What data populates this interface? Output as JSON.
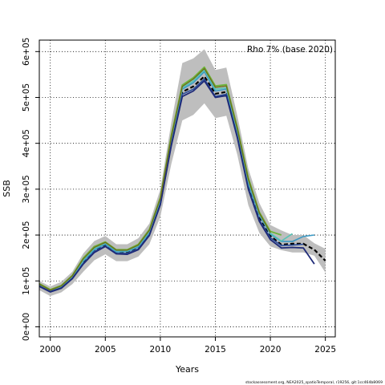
{
  "chart_data": {
    "type": "line",
    "xlabel": "Years",
    "ylabel": "SSB",
    "annotation": "Rho 7% (base 2020)",
    "footer": "stockassessment.org, NEA2025_spatioTemporal, r19256, git:1cc464b8069",
    "xlim": [
      1999,
      2025.9
    ],
    "ylim": [
      -22000,
      625000
    ],
    "x_ticks": [
      2000,
      2005,
      2010,
      2015,
      2020,
      2025
    ],
    "y_ticks": [
      0,
      100000,
      200000,
      300000,
      400000,
      500000,
      600000
    ],
    "y_tick_labels": [
      "0e+00",
      "1e+05",
      "2e+05",
      "3e+05",
      "4e+05",
      "5e+05",
      "6e+05"
    ],
    "grid": true,
    "confidence_band": {
      "color": "#bebebe",
      "x": [
        1999,
        2000,
        2001,
        2002,
        2003,
        2004,
        2005,
        2006,
        2007,
        2008,
        2009,
        2010,
        2011,
        2012,
        2013,
        2014,
        2015,
        2016,
        2017,
        2018,
        2019,
        2020,
        2021,
        2022,
        2023,
        2024,
        2025
      ],
      "lower": [
        80000,
        67000,
        75000,
        93000,
        120000,
        145000,
        158000,
        143000,
        143000,
        153000,
        180000,
        240000,
        355000,
        450000,
        462000,
        487000,
        455000,
        460000,
        375000,
        265000,
        205000,
        175000,
        167000,
        162000,
        162000,
        155000,
        118000
      ],
      "upper": [
        100000,
        88000,
        98000,
        120000,
        160000,
        187000,
        198000,
        180000,
        180000,
        193000,
        225000,
        300000,
        445000,
        575000,
        585000,
        605000,
        560000,
        565000,
        460000,
        345000,
        270000,
        222000,
        210000,
        200000,
        200000,
        182000,
        170000
      ]
    },
    "series": [
      {
        "color": "#000000",
        "dashed": true,
        "width": 2.2,
        "x": [
          1999,
          2000,
          2001,
          2002,
          2003,
          2004,
          2005,
          2006,
          2007,
          2008,
          2009,
          2010,
          2011,
          2012,
          2013,
          2014,
          2015,
          2016,
          2017,
          2018,
          2019,
          2020,
          2021,
          2022,
          2023,
          2024,
          2025
        ],
        "values": [
          90000,
          77000,
          86000,
          107000,
          140000,
          166000,
          178000,
          162000,
          162000,
          172000,
          202000,
          270000,
          400000,
          512000,
          524000,
          546000,
          508000,
          512000,
          418000,
          305000,
          238000,
          198000,
          179000,
          181000,
          181000,
          168000,
          144000
        ]
      },
      {
        "color": "#3b9ac5",
        "width": 1.6,
        "x": [
          1999,
          2000,
          2001,
          2002,
          2003,
          2004,
          2005,
          2006,
          2007,
          2008,
          2009,
          2010,
          2011,
          2012,
          2013,
          2014,
          2015,
          2016,
          2017,
          2018,
          2019,
          2020,
          2021,
          2022,
          2023,
          2024
        ],
        "values": [
          90000,
          78000,
          87000,
          108000,
          143000,
          168000,
          180000,
          163000,
          164000,
          174000,
          205000,
          274000,
          404000,
          518000,
          532000,
          556000,
          514000,
          518000,
          424000,
          312000,
          243000,
          202000,
          186000,
          186000,
          197000,
          200000
        ]
      },
      {
        "color": "#56c3b5",
        "width": 1.6,
        "x": [
          1999,
          2000,
          2001,
          2002,
          2003,
          2004,
          2005,
          2006,
          2007,
          2008,
          2009,
          2010,
          2011,
          2012,
          2013,
          2014,
          2015,
          2016,
          2017,
          2018,
          2019,
          2020,
          2021,
          2022
        ],
        "values": [
          92000,
          79000,
          88000,
          110000,
          146000,
          171000,
          183000,
          166000,
          166000,
          177000,
          208000,
          278000,
          410000,
          521000,
          536000,
          560000,
          518000,
          521000,
          428000,
          318000,
          246000,
          204000,
          187000,
          203000
        ]
      },
      {
        "color": "#2a4c9a",
        "width": 1.6,
        "x": [
          1999,
          2000,
          2001,
          2002,
          2003,
          2004,
          2005,
          2006,
          2007,
          2008,
          2009,
          2010,
          2011,
          2012,
          2013,
          2014,
          2015,
          2016,
          2017,
          2018,
          2019,
          2020,
          2021,
          2022,
          2023
        ],
        "values": [
          89000,
          77000,
          85000,
          106000,
          138000,
          164000,
          176000,
          160000,
          160000,
          170000,
          200000,
          268000,
          398000,
          507000,
          518000,
          540000,
          502000,
          507000,
          415000,
          302000,
          233000,
          194000,
          177000,
          178000,
          180000
        ]
      },
      {
        "color": "#6db53a",
        "width": 1.8,
        "x": [
          1999,
          2000,
          2001,
          2002,
          2003,
          2004,
          2005,
          2006,
          2007,
          2008,
          2009,
          2010,
          2011,
          2012,
          2013,
          2014,
          2015,
          2016,
          2017,
          2018,
          2019,
          2020,
          2021
        ],
        "values": [
          94000,
          81000,
          90000,
          112000,
          150000,
          175000,
          185000,
          168000,
          168000,
          180000,
          212000,
          282000,
          418000,
          527000,
          543000,
          566000,
          525000,
          528000,
          435000,
          325000,
          250000,
          208000,
          200000
        ]
      },
      {
        "color": "#1e2a78",
        "width": 1.8,
        "x": [
          1999,
          2000,
          2001,
          2002,
          2003,
          2004,
          2005,
          2006,
          2007,
          2008,
          2009,
          2010,
          2011,
          2012,
          2013,
          2014,
          2015,
          2016,
          2017,
          2018,
          2019,
          2020,
          2021,
          2022,
          2023,
          2024
        ],
        "values": [
          88000,
          76000,
          84000,
          105000,
          137000,
          162000,
          175000,
          159000,
          158000,
          168000,
          199000,
          266000,
          395000,
          502000,
          514000,
          536000,
          500000,
          504000,
          412000,
          300000,
          230000,
          190000,
          172000,
          173000,
          172000,
          137000
        ]
      },
      {
        "color": "#6e6e1a",
        "width": 1.4,
        "x": [
          1999,
          2000,
          2001,
          2002,
          2003,
          2004,
          2005,
          2006,
          2007,
          2008,
          2009,
          2010,
          2011,
          2012,
          2013,
          2014,
          2015,
          2016,
          2017,
          2018,
          2019,
          2020
        ],
        "values": [
          93000,
          80000,
          89000,
          111000,
          148000,
          173000,
          184000,
          167000,
          167000,
          178000,
          210000,
          280000,
          414000,
          524000,
          540000,
          563000,
          522000,
          525000,
          431000,
          321000,
          248000,
          205000
        ]
      }
    ]
  }
}
